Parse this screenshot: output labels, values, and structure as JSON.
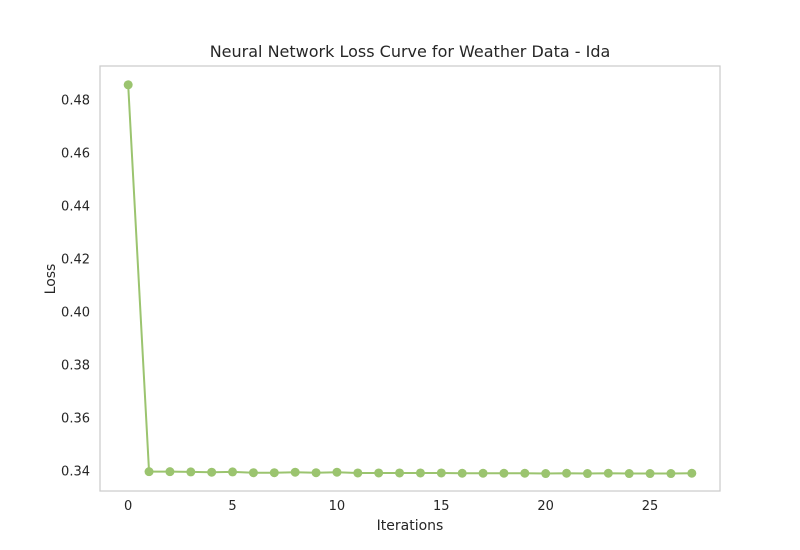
{
  "chart_data": {
    "type": "line",
    "title": "Neural Network Loss Curve for Weather Data - Ida",
    "xlabel": "Iterations",
    "ylabel": "Loss",
    "xlim": [
      -1.35,
      28.35
    ],
    "ylim": [
      0.3322,
      0.4926
    ],
    "xticks": [
      0,
      5,
      10,
      15,
      20,
      25
    ],
    "xtick_labels": [
      "0",
      "5",
      "10",
      "15",
      "20",
      "25"
    ],
    "yticks": [
      0.34,
      0.36,
      0.38,
      0.4,
      0.42,
      0.44,
      0.46,
      0.48
    ],
    "ytick_labels": [
      "0.34",
      "0.36",
      "0.38",
      "0.40",
      "0.42",
      "0.44",
      "0.46",
      "0.48"
    ],
    "grid": false,
    "legend": "none",
    "series": [
      {
        "color": "#9bc46f",
        "marker": "circle",
        "x": [
          0,
          1,
          2,
          3,
          4,
          5,
          6,
          7,
          8,
          9,
          10,
          11,
          12,
          13,
          14,
          15,
          16,
          17,
          18,
          19,
          20,
          21,
          22,
          23,
          24,
          25,
          26,
          27
        ],
        "y": [
          0.4855,
          0.3395,
          0.3395,
          0.3394,
          0.3393,
          0.3394,
          0.3391,
          0.3391,
          0.3393,
          0.3391,
          0.3393,
          0.339,
          0.339,
          0.339,
          0.339,
          0.339,
          0.3389,
          0.3389,
          0.3389,
          0.3389,
          0.3388,
          0.3389,
          0.3388,
          0.3389,
          0.3388,
          0.3388,
          0.3388,
          0.3389
        ]
      }
    ]
  }
}
